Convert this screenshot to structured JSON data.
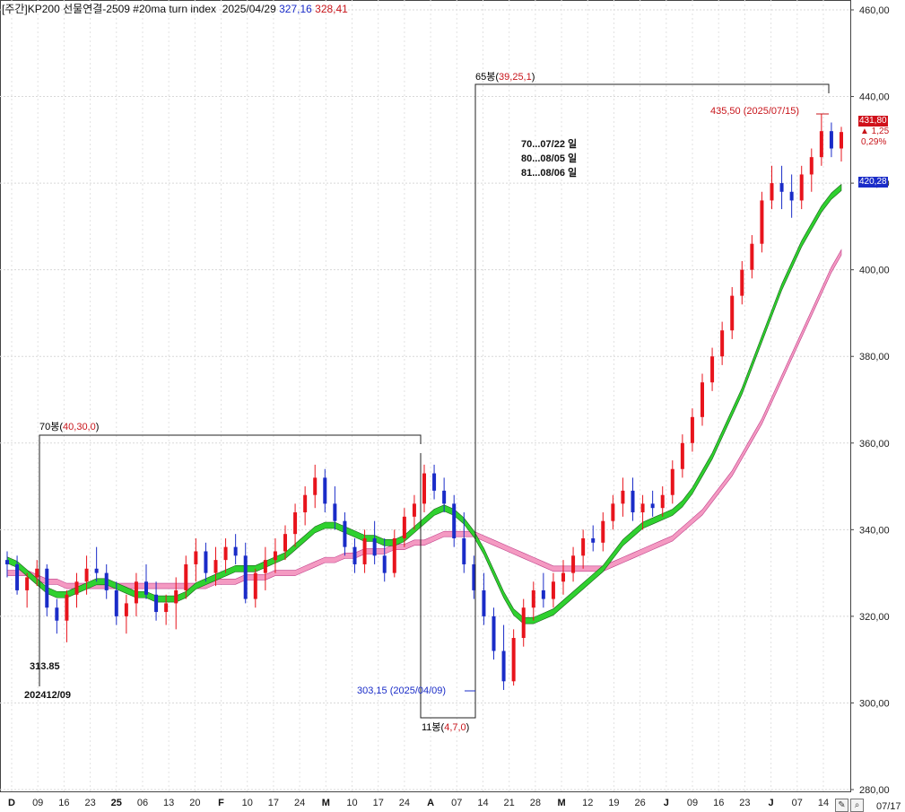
{
  "header": {
    "title": "[주간]KP200 선물연결-2509 #20ma turn index",
    "date": "2025/04/29",
    "value_blue": "327,16",
    "value_red": "328,41"
  },
  "right_axis_date": "07/17",
  "annotations": {
    "range1_label_prefix": "70봉(",
    "range1_label_values": "40,30,0",
    "range1_label_suffix": ")",
    "range2_label_prefix": "65봉(",
    "range2_label_values": "39,25,1",
    "range2_label_suffix": ")",
    "range3_label_prefix": "11봉(",
    "range3_label_values": "4,7,0",
    "range3_label_suffix": ")",
    "low_value": "313.85",
    "low_date": "202412/09",
    "min_label": "303,15 (2025/04/09)",
    "max_label": "435,50 (2025/07/15)",
    "forecast": [
      "70...07/22 일",
      "80...08/05 일",
      "81...08/06 일"
    ],
    "last_price": "431,80",
    "change": "▲ 1,25",
    "change_pct": "0,29%",
    "line_price": "420,28"
  },
  "colors": {
    "up": "#e8141c",
    "down": "#1a2cc8",
    "fast_band_up": "#2fd12f",
    "fast_band_down": "#f7e33a",
    "slow_band_up": "#f49ac2",
    "slow_band_down": "#b9d0f0",
    "line20": "#3a2cb8"
  },
  "corner_icons": [
    "pencil-icon",
    "magnifier-icon"
  ],
  "chart_data": {
    "type": "candlestick",
    "y_axis": {
      "min": 280,
      "max": 460,
      "step": 20,
      "tick_labels": [
        "280,00",
        "300,00",
        "320,00",
        "340,00",
        "360,00",
        "380,00",
        "400,00",
        "420,00",
        "440,00",
        "460,00"
      ],
      "position": "right"
    },
    "x_axis": {
      "tick_labels": [
        "D",
        "09",
        "16",
        "23",
        "25",
        "06",
        "13",
        "20",
        "F",
        "10",
        "17",
        "24",
        "M",
        "10",
        "17",
        "24",
        "A",
        "07",
        "14",
        "21",
        "28",
        "M",
        "12",
        "19",
        "26",
        "J",
        "09",
        "16",
        "23",
        "J",
        "07",
        "14"
      ],
      "bold_labels": [
        "D",
        "25",
        "F",
        "M",
        "A",
        "M",
        "J",
        "J"
      ]
    },
    "grid": true,
    "candles": [
      [
        333,
        335,
        329,
        332
      ],
      [
        332,
        334,
        325,
        326
      ],
      [
        326,
        330,
        322,
        329
      ],
      [
        329,
        333,
        327,
        331
      ],
      [
        331,
        332,
        320,
        322
      ],
      [
        322,
        324,
        316,
        319
      ],
      [
        319,
        326,
        314,
        325
      ],
      [
        325,
        330,
        322,
        328
      ],
      [
        328,
        334,
        325,
        331
      ],
      [
        331,
        336,
        328,
        330
      ],
      [
        330,
        332,
        324,
        326
      ],
      [
        326,
        328,
        318,
        320
      ],
      [
        320,
        325,
        316,
        323
      ],
      [
        323,
        330,
        320,
        328
      ],
      [
        328,
        332,
        324,
        325
      ],
      [
        325,
        328,
        319,
        321
      ],
      [
        321,
        325,
        318,
        323
      ],
      [
        323,
        329,
        317,
        326
      ],
      [
        326,
        334,
        324,
        332
      ],
      [
        332,
        338,
        328,
        335
      ],
      [
        335,
        337,
        328,
        330
      ],
      [
        330,
        336,
        327,
        333
      ],
      [
        333,
        338,
        330,
        336
      ],
      [
        336,
        339,
        332,
        334
      ],
      [
        334,
        337,
        323,
        324
      ],
      [
        324,
        331,
        322,
        330
      ],
      [
        330,
        336,
        326,
        333
      ],
      [
        333,
        338,
        330,
        335
      ],
      [
        335,
        341,
        333,
        339
      ],
      [
        339,
        346,
        336,
        344
      ],
      [
        344,
        350,
        341,
        348
      ],
      [
        348,
        355,
        345,
        352
      ],
      [
        352,
        354,
        344,
        346
      ],
      [
        346,
        350,
        340,
        342
      ],
      [
        342,
        344,
        334,
        336
      ],
      [
        336,
        338,
        330,
        332
      ],
      [
        332,
        340,
        330,
        338
      ],
      [
        338,
        342,
        332,
        334
      ],
      [
        334,
        338,
        328,
        330
      ],
      [
        330,
        340,
        329,
        338
      ],
      [
        338,
        345,
        336,
        343
      ],
      [
        343,
        348,
        340,
        346
      ],
      [
        346,
        355,
        344,
        353
      ],
      [
        353,
        355,
        347,
        349
      ],
      [
        349,
        352,
        344,
        346
      ],
      [
        346,
        348,
        336,
        338
      ],
      [
        338,
        344,
        330,
        332
      ],
      [
        332,
        334,
        324,
        326
      ],
      [
        326,
        330,
        318,
        320
      ],
      [
        320,
        322,
        310,
        312
      ],
      [
        312,
        318,
        303,
        305
      ],
      [
        305,
        317,
        304,
        315
      ],
      [
        315,
        324,
        313,
        322
      ],
      [
        322,
        328,
        319,
        326
      ],
      [
        326,
        330,
        322,
        324
      ],
      [
        324,
        330,
        322,
        328
      ],
      [
        328,
        333,
        325,
        330
      ],
      [
        330,
        336,
        328,
        334
      ],
      [
        334,
        340,
        331,
        338
      ],
      [
        338,
        341,
        335,
        337
      ],
      [
        337,
        344,
        335,
        342
      ],
      [
        342,
        348,
        340,
        346
      ],
      [
        346,
        352,
        343,
        349
      ],
      [
        349,
        352,
        342,
        344
      ],
      [
        344,
        348,
        340,
        346
      ],
      [
        346,
        349,
        343,
        345
      ],
      [
        345,
        350,
        343,
        348
      ],
      [
        348,
        356,
        346,
        354
      ],
      [
        354,
        362,
        352,
        360
      ],
      [
        360,
        368,
        358,
        366
      ],
      [
        366,
        376,
        364,
        374
      ],
      [
        374,
        382,
        372,
        380
      ],
      [
        380,
        388,
        378,
        386
      ],
      [
        386,
        396,
        384,
        394
      ],
      [
        394,
        402,
        392,
        400
      ],
      [
        400,
        408,
        398,
        406
      ],
      [
        406,
        418,
        404,
        416
      ],
      [
        416,
        424,
        414,
        420
      ],
      [
        420,
        424,
        414,
        418
      ],
      [
        418,
        422,
        412,
        416
      ],
      [
        416,
        424,
        414,
        422
      ],
      [
        422,
        428,
        418,
        426
      ],
      [
        426,
        436,
        424,
        432
      ],
      [
        432,
        434,
        426,
        428
      ],
      [
        428,
        433,
        425,
        431.8
      ]
    ],
    "series": [
      {
        "values": [
          333,
          332,
          330,
          328,
          326,
          325,
          325,
          326,
          327,
          328,
          328,
          327,
          326,
          325,
          325,
          324,
          324,
          324,
          325,
          327,
          328,
          329,
          330,
          331,
          331,
          331,
          332,
          333,
          334,
          336,
          338,
          340,
          341,
          341,
          340,
          339,
          338,
          338,
          337,
          337,
          338,
          340,
          342,
          344,
          345,
          344,
          342,
          339,
          335,
          330,
          325,
          321,
          319,
          319,
          320,
          321,
          323,
          325,
          327,
          329,
          331,
          334,
          337,
          339,
          341,
          342,
          343,
          344,
          346,
          349,
          353,
          357,
          362,
          367,
          372,
          378,
          384,
          390,
          396,
          401,
          406,
          410,
          414,
          417,
          419
        ]
      },
      {
        "values": [
          330,
          330,
          330,
          329,
          328,
          328,
          327,
          327,
          327,
          327,
          327,
          327,
          327,
          327,
          327,
          327,
          327,
          327,
          327,
          327,
          327,
          328,
          328,
          328,
          329,
          329,
          329,
          330,
          330,
          330,
          331,
          332,
          333,
          333,
          334,
          334,
          335,
          335,
          335,
          336,
          336,
          337,
          337,
          338,
          339,
          339,
          339,
          339,
          338,
          337,
          336,
          335,
          334,
          333,
          332,
          331,
          331,
          331,
          331,
          331,
          331,
          332,
          333,
          334,
          335,
          336,
          337,
          338,
          340,
          342,
          344,
          347,
          350,
          353,
          357,
          361,
          365,
          370,
          375,
          380,
          385,
          390,
          395,
          400,
          404
        ]
      }
    ]
  }
}
